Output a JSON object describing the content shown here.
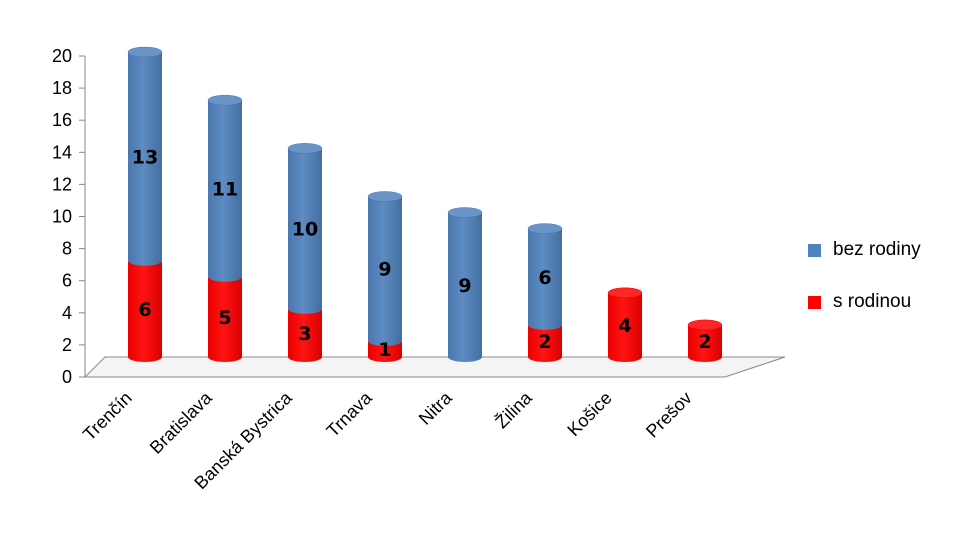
{
  "chart_data": {
    "type": "bar",
    "stacked": true,
    "style": "3d-cylinder",
    "categories": [
      "Trenčín",
      "Bratislava",
      "Banská Bystrica",
      "Trnava",
      "Nitra",
      "Žilina",
      "Košice",
      "Prešov"
    ],
    "series": [
      {
        "name": "s rodinou",
        "color": "#ff0000",
        "values": [
          6,
          5,
          3,
          1,
          0,
          2,
          4,
          2
        ]
      },
      {
        "name": "bez rodiny",
        "color": "#4f81bd",
        "values": [
          13,
          11,
          10,
          9,
          9,
          6,
          0,
          0
        ]
      }
    ],
    "ylim": [
      0,
      20
    ],
    "yticks": [
      "0",
      "2",
      "4",
      "6",
      "8",
      "10",
      "12",
      "14",
      "16",
      "18",
      "20"
    ],
    "grid": false,
    "legend": "right",
    "legend_items": [
      {
        "label": "bez rodiny",
        "color": "#4f81bd"
      },
      {
        "label": "s rodinou",
        "color": "#ff0000"
      }
    ]
  }
}
